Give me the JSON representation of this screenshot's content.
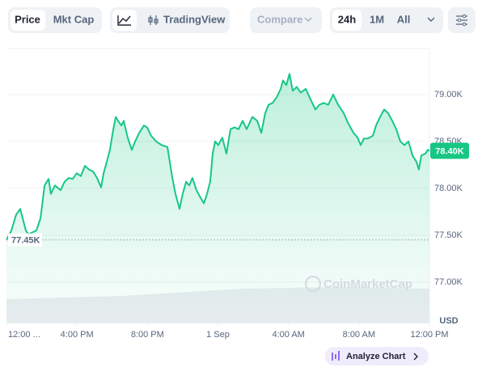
{
  "toolbar": {
    "tabs": [
      "Price",
      "Mkt Cap"
    ],
    "tradingview": "TradingView",
    "compare": "Compare",
    "ranges": [
      "24h",
      "1M",
      "All"
    ]
  },
  "chart_data": {
    "type": "line",
    "color": "#16c784",
    "grid": true,
    "x": [
      0,
      0.28,
      0.55,
      0.78,
      0.92,
      1.1,
      1.24,
      1.47,
      1.7,
      1.93,
      2.16,
      2.39,
      2.52,
      2.75,
      3.07,
      3.3,
      3.53,
      3.76,
      3.99,
      4.22,
      4.45,
      4.68,
      4.91,
      5.14,
      5.37,
      5.51,
      5.69,
      5.87,
      6.06,
      6.2,
      6.33,
      6.52,
      6.65,
      6.88,
      7.11,
      7.3,
      7.53,
      7.8,
      7.98,
      8.21,
      8.49,
      8.81,
      9.13,
      9.27,
      9.41,
      9.59,
      9.82,
      10.0,
      10.19,
      10.37,
      10.55,
      10.78,
      11.01,
      11.2,
      11.38,
      11.56,
      11.7,
      11.84,
      12.02,
      12.25,
      12.48,
      12.71,
      12.94,
      13.17,
      13.4,
      13.63,
      13.95,
      14.23,
      14.46,
      14.68,
      14.87,
      15.1,
      15.33,
      15.56,
      15.69,
      15.88,
      16.06,
      16.24,
      16.47,
      16.7,
      16.98,
      17.3,
      17.53,
      17.76,
      17.99,
      18.26,
      18.54,
      18.82,
      19.14,
      19.37,
      19.69,
      19.92,
      20.1,
      20.28,
      20.51,
      20.79,
      20.97,
      21.2,
      21.43,
      21.66,
      21.89,
      22.12,
      22.35,
      22.58,
      22.81,
      23.04,
      23.27,
      23.4,
      23.54,
      23.77,
      23.91,
      24.0
    ],
    "values": [
      77450,
      77550,
      77720,
      77780,
      77680,
      77550,
      77510,
      77530,
      77550,
      77680,
      78030,
      78100,
      77940,
      78030,
      77980,
      78070,
      78110,
      78100,
      78160,
      78130,
      78240,
      78200,
      78180,
      78110,
      78010,
      78160,
      78280,
      78410,
      78630,
      78760,
      78720,
      78670,
      78720,
      78540,
      78410,
      78500,
      78590,
      78670,
      78650,
      78560,
      78500,
      78460,
      78440,
      78280,
      78110,
      77940,
      77780,
      77940,
      78070,
      78030,
      78110,
      77980,
      77900,
      77840,
      77940,
      78070,
      78370,
      78500,
      78460,
      78540,
      78370,
      78630,
      78650,
      78630,
      78720,
      78630,
      78760,
      78720,
      78590,
      78800,
      78890,
      78910,
      78970,
      79060,
      79150,
      79100,
      79220,
      79040,
      79080,
      79020,
      79060,
      78930,
      78840,
      78890,
      78910,
      78890,
      79000,
      78890,
      78800,
      78700,
      78590,
      78540,
      78460,
      78530,
      78530,
      78560,
      78670,
      78760,
      78840,
      78800,
      78720,
      78630,
      78500,
      78460,
      78500,
      78350,
      78280,
      78200,
      78350,
      78370,
      78410,
      78400
    ],
    "xlim": [
      0,
      24
    ],
    "xticks": [
      {
        "value": 0,
        "label": "12:00 ..."
      },
      {
        "value": 4,
        "label": "4:00 PM"
      },
      {
        "value": 8,
        "label": "8:00 PM"
      },
      {
        "value": 12,
        "label": "1 Sep"
      },
      {
        "value": 16,
        "label": "4:00 AM"
      },
      {
        "value": 20,
        "label": "8:00 AM"
      },
      {
        "value": 24,
        "label": "12:00 PM"
      }
    ],
    "ylim": [
      76560,
      79490
    ],
    "yticks": [
      {
        "value": 77000,
        "label": "77.00K"
      },
      {
        "value": 77500,
        "label": "77.50K"
      },
      {
        "value": 78000,
        "label": "78.00K"
      },
      {
        "value": 78500,
        "label": "78.50K"
      },
      {
        "value": 79000,
        "label": "79.00K"
      }
    ],
    "low_label": {
      "value": 77450,
      "label": "77.45K"
    },
    "last_label": {
      "value": 78400,
      "label": "78.40K"
    },
    "currency": "USD",
    "watermark": "CoinMarketCap"
  },
  "analyze_button": "Analyze Chart"
}
